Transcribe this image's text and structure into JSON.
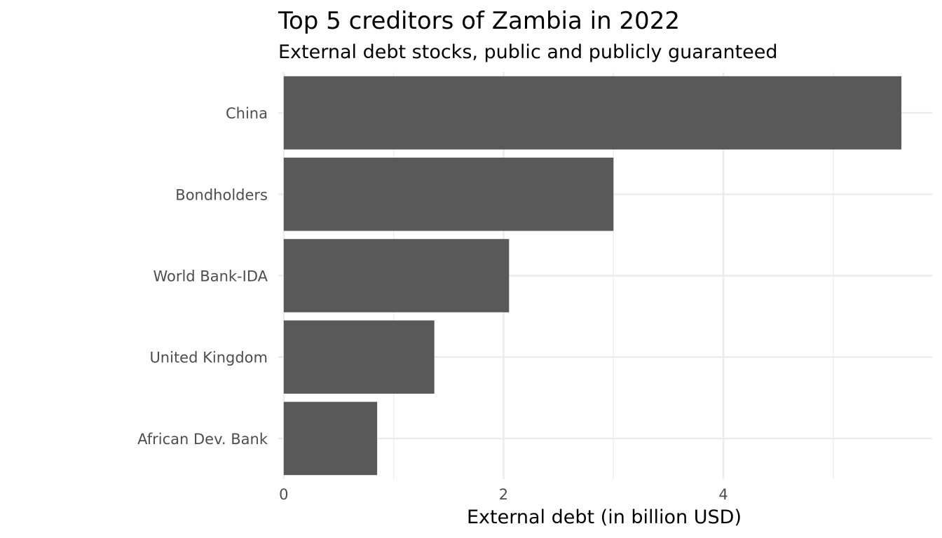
{
  "chart_data": {
    "type": "bar",
    "orientation": "horizontal",
    "title": "Top 5 creditors of Zambia in 2022",
    "subtitle": "External debt stocks, public and publicly guaranteed",
    "xlabel": "External debt (in billion USD)",
    "ylabel": "",
    "categories": [
      "China",
      "Bondholders",
      "World Bank-IDA",
      "United Kingdom",
      "African Dev. Bank"
    ],
    "values": [
      5.62,
      3.0,
      2.05,
      1.37,
      0.85
    ],
    "xlim": [
      -0.05,
      5.9
    ],
    "xticks": [
      0,
      2,
      4
    ],
    "xtick_labels": [
      "0",
      "2",
      "4"
    ],
    "grid": true,
    "legend": "none",
    "colors": {
      "bar": "#595959",
      "grid": "#ebebeb",
      "text": "#4d4d4d"
    }
  }
}
